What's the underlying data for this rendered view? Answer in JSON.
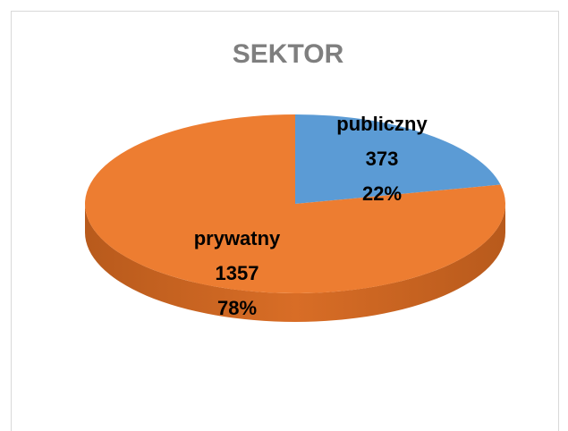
{
  "chart_data": {
    "type": "pie",
    "title": "SEKTOR",
    "categories": [
      "publiczny",
      "prywatny"
    ],
    "values": [
      373,
      1357
    ],
    "percent_labels": [
      "22%",
      "78%"
    ],
    "colors": [
      "#5b9bd5",
      "#ed7d31"
    ]
  }
}
